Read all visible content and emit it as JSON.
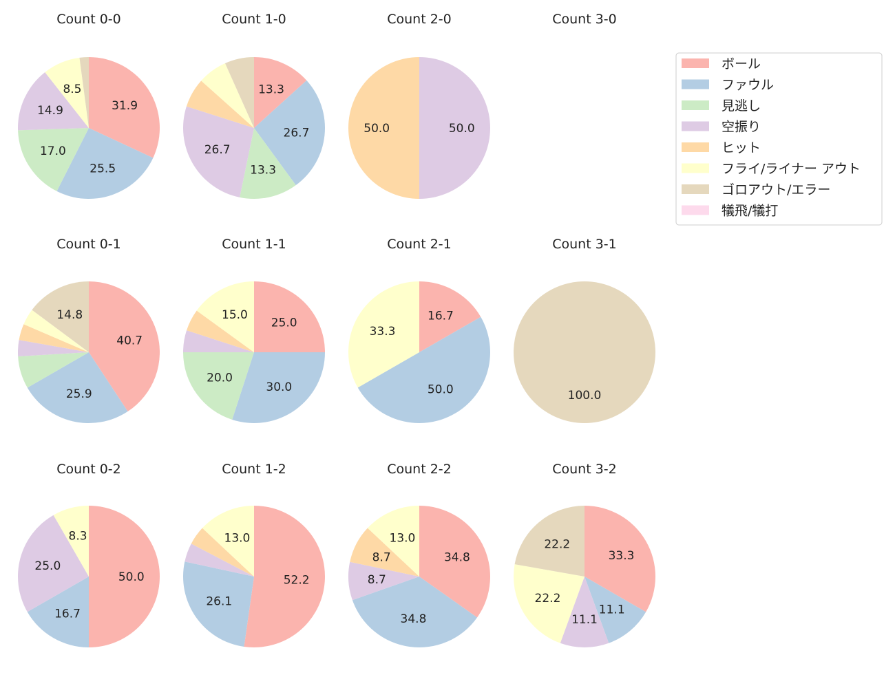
{
  "chart_data": {
    "type": "pie",
    "legend": {
      "placement": "top-right",
      "entries": [
        "ボール",
        "ファウル",
        "見逃し",
        "空振り",
        "ヒット",
        "フライ/ライナー アウト",
        "ゴロアウト/エラー",
        "犠飛/犠打"
      ]
    },
    "colors": [
      "#fbb4ae",
      "#b3cde3",
      "#ccebc5",
      "#decbe4",
      "#fed9a6",
      "#ffffcc",
      "#e5d8bd",
      "#fddaec"
    ],
    "start_angle_deg": 90,
    "direction": "clockwise",
    "label_threshold_percent": 8,
    "charts": [
      {
        "title": "Count 0-0",
        "values": [
          31.9,
          25.5,
          17.0,
          14.9,
          0,
          8.5,
          2.1,
          0
        ]
      },
      {
        "title": "Count 1-0",
        "values": [
          13.3,
          26.7,
          13.3,
          26.7,
          6.7,
          6.7,
          6.7,
          0
        ]
      },
      {
        "title": "Count 2-0",
        "values": [
          0,
          0,
          0,
          50.0,
          50.0,
          0,
          0,
          0
        ]
      },
      {
        "title": "Count 3-0",
        "values": []
      },
      {
        "title": "Count 0-1",
        "values": [
          40.7,
          25.9,
          7.4,
          3.7,
          3.7,
          3.7,
          14.8,
          0
        ]
      },
      {
        "title": "Count 1-1",
        "values": [
          25.0,
          30.0,
          20.0,
          5.0,
          5.0,
          15.0,
          0,
          0
        ]
      },
      {
        "title": "Count 2-1",
        "values": [
          16.7,
          50.0,
          0,
          0,
          0,
          33.3,
          0,
          0
        ]
      },
      {
        "title": "Count 3-1",
        "values": [
          0,
          0,
          0,
          0,
          0,
          0,
          100.0,
          0
        ]
      },
      {
        "title": "Count 0-2",
        "values": [
          50.0,
          16.7,
          0,
          25.0,
          0,
          8.3,
          0,
          0
        ]
      },
      {
        "title": "Count 1-2",
        "values": [
          52.2,
          26.1,
          0,
          4.3,
          4.3,
          13.0,
          0,
          0
        ]
      },
      {
        "title": "Count 2-2",
        "values": [
          34.8,
          34.8,
          0,
          8.7,
          8.7,
          13.0,
          0,
          0
        ]
      },
      {
        "title": "Count 3-2",
        "values": [
          33.3,
          11.1,
          0,
          11.1,
          0,
          22.2,
          22.2,
          0
        ]
      }
    ]
  }
}
